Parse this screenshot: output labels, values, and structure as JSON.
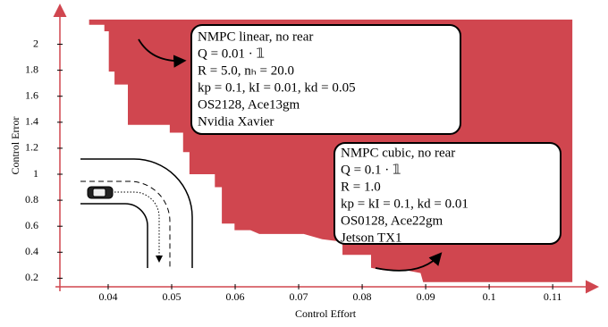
{
  "chart_data": {
    "type": "area",
    "xlabel": "Control Effort",
    "ylabel": "Control Error",
    "color": "#d0464f",
    "x": [
      0.0339,
      0.037,
      0.037,
      0.0394,
      0.0394,
      0.0401,
      0.0401,
      0.041,
      0.041,
      0.0431,
      0.0431,
      0.0497,
      0.0497,
      0.0518,
      0.0518,
      0.0528,
      0.0528,
      0.0568,
      0.0568,
      0.0579,
      0.0579,
      0.0599,
      0.0599,
      0.0624,
      0.0638,
      0.0708,
      0.0737,
      0.0769,
      0.0769,
      0.0814,
      0.0814,
      0.0835,
      0.087,
      0.0892,
      0.0896,
      0.1131,
      0.1131
    ],
    "values": [
      2.19,
      2.19,
      2.15,
      2.15,
      2.1,
      2.1,
      1.79,
      1.79,
      1.69,
      1.69,
      1.38,
      1.38,
      1.32,
      1.32,
      1.17,
      1.17,
      1.0,
      1.0,
      0.9,
      0.9,
      0.62,
      0.62,
      0.57,
      0.57,
      0.54,
      0.54,
      0.5,
      0.48,
      0.38,
      0.38,
      0.28,
      0.26,
      0.26,
      0.24,
      0.17,
      0.17,
      2.19
    ],
    "xlim": [
      0.0324,
      0.1166
    ],
    "ylim": [
      0.134,
      2.306
    ],
    "xticks": [
      0.04,
      0.05,
      0.06,
      0.07,
      0.08,
      0.09,
      0.1,
      0.11
    ],
    "yticks": [
      0.2,
      0.4,
      0.6,
      0.8,
      1,
      1.2,
      1.4,
      1.6,
      1.8,
      2
    ],
    "annotations": [
      {
        "lines": [
          "NMPC linear, no rear",
          "Q = 0.01 · 𝟙",
          "R = 5.0, nₕ = 20.0",
          "kp = 0.1, kI = 0.01, kd = 0.05",
          "OS2128, Ace13gm",
          "Nvidia Xavier"
        ]
      },
      {
        "lines": [
          "NMPC cubic, no rear",
          "Q = 0.1 · 𝟙",
          "R = 1.0",
          "kp = kI = 0.1, kd = 0.01",
          "OS0128, Ace22gm",
          "Jetson TX1"
        ]
      }
    ]
  }
}
